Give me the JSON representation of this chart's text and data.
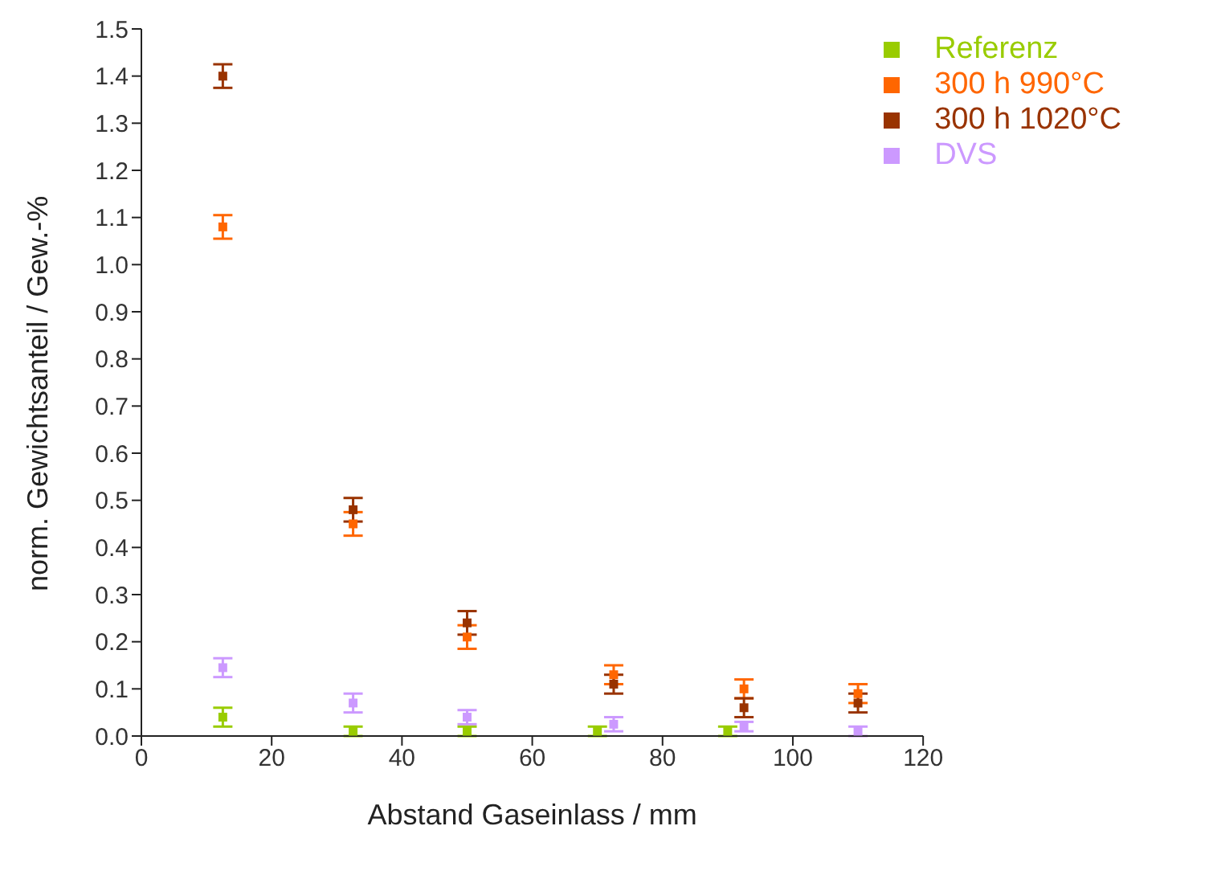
{
  "chart_data": {
    "type": "scatter",
    "xlabel": "Abstand Gaseinlass / mm",
    "ylabel": "norm. Gewichtsanteil / Gew.-%",
    "xlim": [
      0,
      120
    ],
    "xticks": [
      0,
      20,
      40,
      60,
      80,
      100,
      120
    ],
    "ylim": [
      0,
      1.5
    ],
    "yticks": [
      {
        "value": 0,
        "label": "0.0"
      },
      {
        "value": 0.1,
        "label": "0.1"
      },
      {
        "value": 0.2,
        "label": "0.2"
      },
      {
        "value": 0.3,
        "label": "0.3"
      },
      {
        "value": 0.4,
        "label": "0.4"
      },
      {
        "value": 0.5,
        "label": "0.5"
      },
      {
        "value": 0.6,
        "label": "0.6"
      },
      {
        "value": 0.7,
        "label": "0.7"
      },
      {
        "value": 0.8,
        "label": "0.8"
      },
      {
        "value": 0.9,
        "label": "0.9"
      },
      {
        "value": 1,
        "label": "1.0"
      },
      {
        "value": 1.1,
        "label": "1.1"
      },
      {
        "value": 1.2,
        "label": "1.2"
      },
      {
        "value": 1.3,
        "label": "1.3"
      },
      {
        "value": 1.4,
        "label": "1.4"
      },
      {
        "value": 1.5,
        "label": "1.5"
      }
    ],
    "marker": "square",
    "legend": "top right",
    "grid": false,
    "series": [
      {
        "name": "Referenz",
        "color": "#99cc00",
        "x": [
          12.5,
          32.5,
          50,
          70,
          90
        ],
        "values": [
          0.04,
          0.01,
          0.01,
          0.01,
          0.01
        ],
        "errors": [
          0.02,
          0.01,
          0.01,
          0.01,
          0.01
        ]
      },
      {
        "name": "300 h 990°C",
        "color": "#ff6600",
        "x": [
          12.5,
          32.5,
          50,
          72.5,
          92.5,
          110
        ],
        "values": [
          1.08,
          0.45,
          0.21,
          0.13,
          0.1,
          0.09
        ],
        "errors": [
          0.025,
          0.025,
          0.025,
          0.02,
          0.02,
          0.02
        ]
      },
      {
        "name": "300 h 1020°C",
        "color": "#993300",
        "x": [
          12.5,
          32.5,
          50,
          72.5,
          92.5,
          110
        ],
        "values": [
          1.4,
          0.48,
          0.24,
          0.11,
          0.06,
          0.07
        ],
        "errors": [
          0.025,
          0.025,
          0.025,
          0.02,
          0.02,
          0.02
        ]
      },
      {
        "name": "DVS",
        "color": "#cc99ff",
        "x": [
          12.5,
          32.5,
          50,
          72.5,
          92.5,
          110
        ],
        "values": [
          0.145,
          0.07,
          0.04,
          0.025,
          0.02,
          0.01
        ],
        "errors": [
          0.02,
          0.02,
          0.015,
          0.015,
          0.01,
          0.01
        ]
      }
    ]
  }
}
